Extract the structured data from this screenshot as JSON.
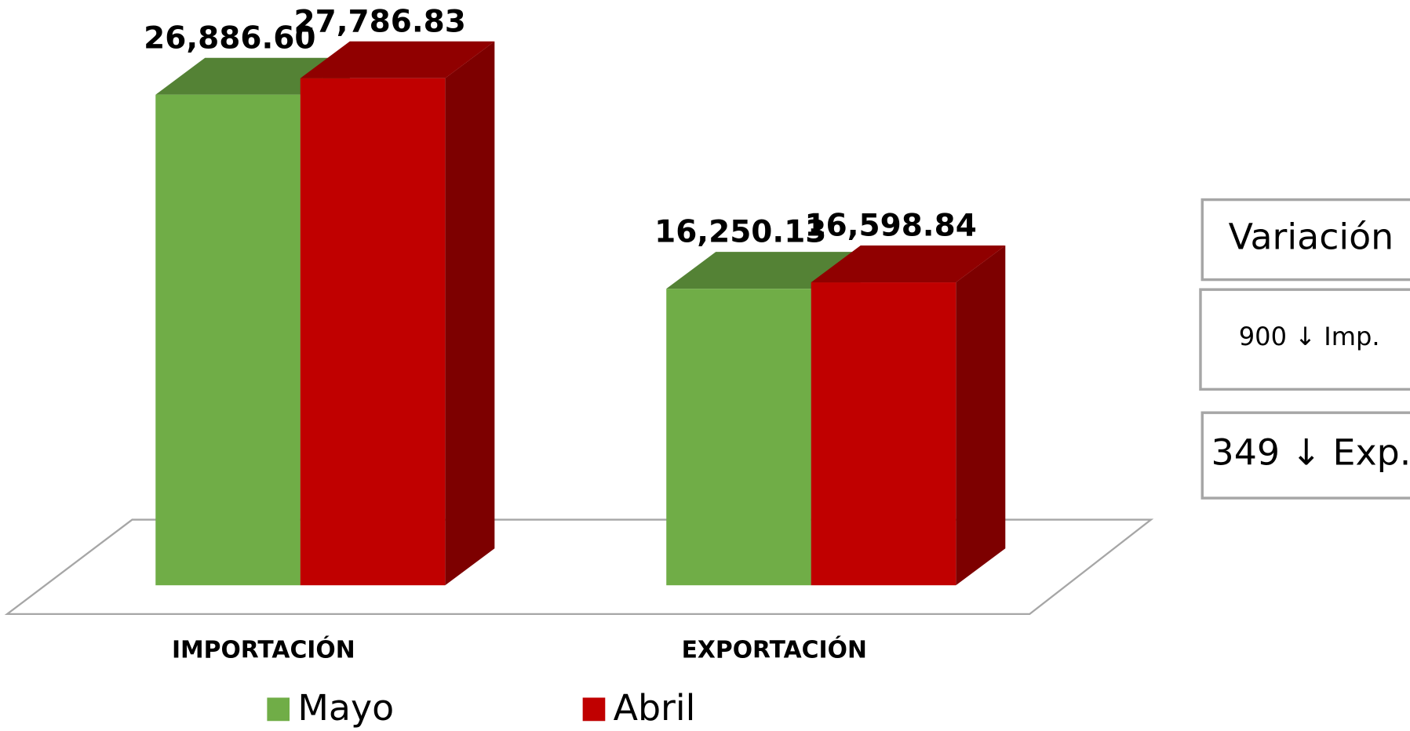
{
  "chart_data": {
    "type": "bar3d",
    "categories": [
      "IMPORTACIÓN",
      "EXPORTACIÓN"
    ],
    "series": [
      {
        "name": "Mayo",
        "color": "#70ad47",
        "values": [
          26886.6,
          16250.13
        ],
        "value_labels": [
          "26,886.60",
          "16,250.13"
        ]
      },
      {
        "name": "Abril",
        "color": "#c00000",
        "values": [
          27786.83,
          16598.84
        ],
        "value_labels": [
          "27,786.83",
          "16,598.84"
        ]
      }
    ],
    "annotations": [
      "Variación",
      "900 ↓ Imp.",
      "349 ↓ Exp."
    ]
  }
}
